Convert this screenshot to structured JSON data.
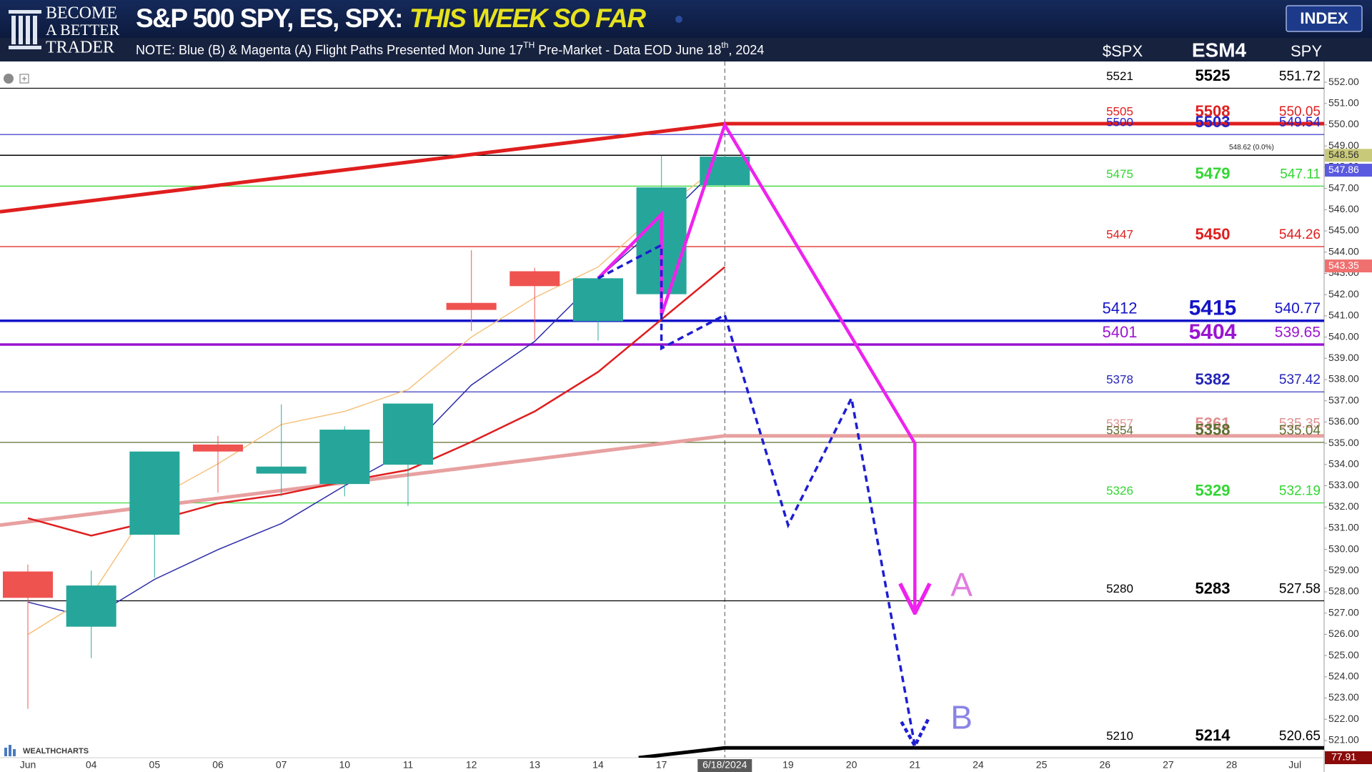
{
  "chart_data": {
    "type": "candlestick",
    "brand": [
      "BECOME",
      "A BETTER",
      "TRADER"
    ],
    "title": "S&P 500 SPY, ES, SPX:",
    "title_highlight": "THIS WEEK SO FAR",
    "button": "INDEX",
    "note": [
      "NOTE: Blue (B) & Magenta (A) Flight Paths Presented Mon June 17",
      "TH",
      "  Pre-Market  - Data EOD June 18",
      "th",
      ", 2024"
    ],
    "column_headers": [
      "$SPX",
      "ESM4",
      "SPY"
    ],
    "categories": [
      "Jun",
      "04",
      "05",
      "06",
      "07",
      "10",
      "11",
      "12",
      "13",
      "14",
      "17",
      "6/18/2024",
      "19",
      "20",
      "21",
      "24",
      "25",
      "26",
      "27",
      "28",
      "Jul"
    ],
    "cursor": 11,
    "xlim": [
      -0.44,
      20.46
    ],
    "ylim": [
      520.19,
      552.98
    ],
    "yticks": [
      {
        "value": 521,
        "label": "521.00"
      },
      {
        "value": 522,
        "label": "522.00"
      },
      {
        "value": 523,
        "label": "523.00"
      },
      {
        "value": 524,
        "label": "524.00"
      },
      {
        "value": 525,
        "label": "525.00"
      },
      {
        "value": 526,
        "label": "526.00"
      },
      {
        "value": 527,
        "label": "527.00"
      },
      {
        "value": 528,
        "label": "528.00"
      },
      {
        "value": 529,
        "label": "529.00"
      },
      {
        "value": 530,
        "label": "530.00"
      },
      {
        "value": 531,
        "label": "531.00"
      },
      {
        "value": 532,
        "label": "532.00"
      },
      {
        "value": 533,
        "label": "533.00"
      },
      {
        "value": 534,
        "label": "534.00"
      },
      {
        "value": 535,
        "label": "535.00"
      },
      {
        "value": 536,
        "label": "536.00"
      },
      {
        "value": 537,
        "label": "537.00"
      },
      {
        "value": 538,
        "label": "538.00"
      },
      {
        "value": 539,
        "label": "539.00"
      },
      {
        "value": 540,
        "label": "540.00"
      },
      {
        "value": 541,
        "label": "541.00"
      },
      {
        "value": 542,
        "label": "542.00"
      },
      {
        "value": 543,
        "label": "543.00"
      },
      {
        "value": 544,
        "label": "544.00"
      },
      {
        "value": 545,
        "label": "545.00"
      },
      {
        "value": 546,
        "label": "546.00"
      },
      {
        "value": 547,
        "label": "547.00"
      },
      {
        "value": 548,
        "label": "548.00"
      },
      {
        "value": 549,
        "label": "549.00"
      },
      {
        "value": 550,
        "label": "550.00"
      },
      {
        "value": 551,
        "label": "551.00"
      },
      {
        "value": 552,
        "label": "552.00"
      }
    ],
    "candles": {
      "open": [
        528.96,
        526.36,
        530.69,
        534.94,
        533.57,
        533.08,
        533.99,
        541.61,
        543.1,
        540.75,
        542.02,
        547.15,
        null,
        null,
        null,
        null,
        null,
        null,
        null,
        null,
        null
      ],
      "high": [
        529.29,
        529.0,
        534.61,
        535.35,
        536.83,
        535.8,
        536.87,
        544.09,
        543.26,
        542.77,
        548.54,
        548.58,
        null,
        null,
        null,
        null,
        null,
        null,
        null,
        null,
        null
      ],
      "low": [
        522.49,
        524.88,
        528.67,
        532.67,
        532.5,
        532.5,
        532.05,
        540.29,
        539.88,
        539.84,
        542.02,
        547.1,
        null,
        null,
        null,
        null,
        null,
        null,
        null,
        null,
        null
      ],
      "close": [
        527.72,
        528.3,
        534.61,
        534.61,
        533.9,
        535.64,
        536.87,
        541.28,
        542.4,
        542.77,
        547.05,
        548.5,
        null,
        null,
        null,
        null,
        null,
        null,
        null,
        null,
        null
      ]
    },
    "up_color": "#26a69a",
    "down_color": "#ef5350",
    "moving_averages": [
      {
        "color": "#2a2aa8",
        "values": [
          527.52,
          526.77,
          528.59,
          529.99,
          531.22,
          533.0,
          534.65,
          537.74,
          539.8,
          542.77,
          545.37,
          548.33,
          null,
          null,
          null,
          null,
          null,
          null,
          null,
          null,
          null
        ]
      },
      {
        "color": "#f5c27e",
        "values": [
          525.99,
          527.84,
          532.38,
          534.03,
          535.88,
          536.5,
          537.53,
          540.0,
          541.86,
          543.3,
          545.98,
          548.25,
          null,
          null,
          null,
          null,
          null,
          null,
          null,
          null,
          null
        ]
      },
      {
        "color": "#e01e1e",
        "values": [
          531.47,
          530.65,
          531.35,
          532.17,
          532.59,
          533.2,
          533.74,
          535.06,
          536.5,
          538.36,
          540.83,
          543.3,
          null,
          null,
          null,
          null,
          null,
          null,
          null,
          null,
          null
        ]
      }
    ],
    "trendlines": [
      {
        "color": "#e01e1e",
        "x": [
          -0.44,
          11,
          20.46
        ],
        "values": [
          545.9,
          550.05,
          550.05
        ]
      },
      {
        "color": "#e8a0a0",
        "x": [
          -0.44,
          11,
          20.46
        ],
        "values": [
          531.14,
          535.35,
          535.35
        ]
      },
      {
        "color": "#000000",
        "x": [
          9.64,
          11,
          20.46
        ],
        "values": [
          520.19,
          520.65,
          520.65
        ]
      }
    ],
    "levels": [
      {
        "spx": 5521,
        "es": 5525,
        "spy": 551.72,
        "color": "#000000",
        "line": true,
        "weight": "thin",
        "size": "normal"
      },
      {
        "spx": 5505,
        "es": 5508,
        "spy": 550.05,
        "color": "#e01e1e",
        "line": false,
        "weight": "thick",
        "size": "normal"
      },
      {
        "spx": 5500,
        "es": 5503,
        "spy": 549.54,
        "color": "#2424c8",
        "line": true,
        "weight": "thin",
        "size": "normal"
      },
      {
        "spx": 5475,
        "es": 5479,
        "spy": 547.11,
        "color": "#33d633",
        "line": true,
        "weight": "thin",
        "size": "normal"
      },
      {
        "spx": 5447,
        "es": 5450,
        "spy": 544.26,
        "color": "#e01e1e",
        "line": true,
        "weight": "thin",
        "size": "normal"
      },
      {
        "spx": 5412,
        "es": 5415,
        "spy": 540.77,
        "color": "#1414c8",
        "line": true,
        "weight": "thick",
        "size": "large"
      },
      {
        "spx": 5401,
        "es": 5404,
        "spy": 539.65,
        "color": "#9a14d0",
        "line": true,
        "weight": "thick",
        "size": "large"
      },
      {
        "spx": 5378,
        "es": 5382,
        "spy": 537.42,
        "color": "#2424b8",
        "line": true,
        "weight": "thin",
        "size": "normal"
      },
      {
        "spx": 5357,
        "es": 5361,
        "spy": 535.35,
        "color": "#e09090",
        "line": false,
        "weight": "thick",
        "size": "normal"
      },
      {
        "spx": 5354,
        "es": 5358,
        "spy": 535.04,
        "color": "#5e6e30",
        "line": true,
        "weight": "thin",
        "size": "normal"
      },
      {
        "spx": 5326,
        "es": 5329,
        "spy": 532.19,
        "color": "#33d633",
        "line": true,
        "weight": "thin",
        "size": "normal"
      },
      {
        "spx": 5280,
        "es": 5283,
        "spy": 527.58,
        "color": "#000000",
        "line": true,
        "weight": "thin",
        "size": "normal"
      },
      {
        "spx": 5210,
        "es": 5214,
        "spy": 520.65,
        "color": "#000000",
        "line": false,
        "weight": "thick",
        "size": "normal"
      }
    ],
    "flight_paths": [
      {
        "label": "A",
        "color": "#ee22ee",
        "label_color": "#e07ce0",
        "dashed": false,
        "x": [
          9,
          10,
          10,
          11,
          14,
          14
        ],
        "values": [
          542.77,
          545.78,
          541.04,
          549.99,
          535.0,
          527.0
        ]
      },
      {
        "label": "B",
        "color": "#1e1ed2",
        "label_color": "#8a84e6",
        "dashed": true,
        "x": [
          9,
          10,
          10,
          11,
          12,
          13,
          14
        ],
        "values": [
          542.77,
          544.33,
          539.47,
          541.04,
          531.14,
          537.12,
          520.75
        ]
      }
    ],
    "price_tags": [
      {
        "value": 548.56,
        "color": "#c9c97a",
        "text_color": "#333333",
        "line": true
      },
      {
        "value": 547.86,
        "color": "#5a5ae0",
        "text_color": "#ffffff",
        "line": false
      },
      {
        "value": 543.35,
        "color": "#f07070",
        "text_color": "#ffffff",
        "line": false
      }
    ],
    "price_note": "548.62 (0.0%)",
    "bottom_tag": {
      "value": 77.91,
      "color": "#8b0a0a"
    },
    "watermark": "WEALTHCHARTS"
  }
}
